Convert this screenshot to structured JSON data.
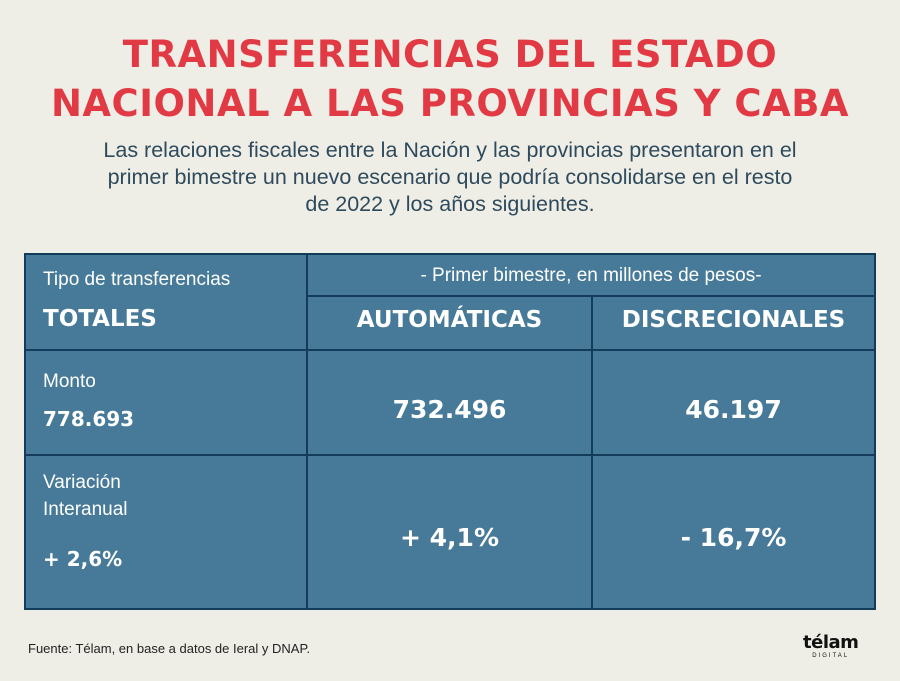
{
  "header": {
    "title_line1": "TRANSFERENCIAS DEL ESTADO",
    "title_line2": "NACIONAL A LAS PROVINCIAS Y CABA",
    "subtitle_line1": "Las relaciones fiscales entre la Nación y las provincias presentaron en el",
    "subtitle_line2": "primer bimestre un nuevo escenario que podría consolidarse en el resto",
    "subtitle_line3": "de 2022 y los años siguientes."
  },
  "table": {
    "type_label": "Tipo de transferencias",
    "period_label": "- Primer bimestre, en millones de pesos-",
    "col_totals": "TOTALES",
    "col_automatic": "AUTOMÁTICAS",
    "col_discretionary": "DISCRECIONALES",
    "rows": [
      {
        "label": "Monto",
        "total": "778.693",
        "automatic": "732.496",
        "discretionary": "46.197"
      },
      {
        "label_line1": "Variación",
        "label_line2": "Interanual",
        "total": "+ 2,6%",
        "automatic": "+ 4,1%",
        "discretionary": "- 16,7%"
      }
    ]
  },
  "footer": {
    "source": "Fuente: Télam, en base a datos de Ieral y DNAP.",
    "logo_word": "télam",
    "logo_sub": "DIGITAL"
  },
  "colors": {
    "title": "#e23a44",
    "table_bg": "#467a98",
    "border": "#123c59",
    "background": "#eeeee6"
  }
}
